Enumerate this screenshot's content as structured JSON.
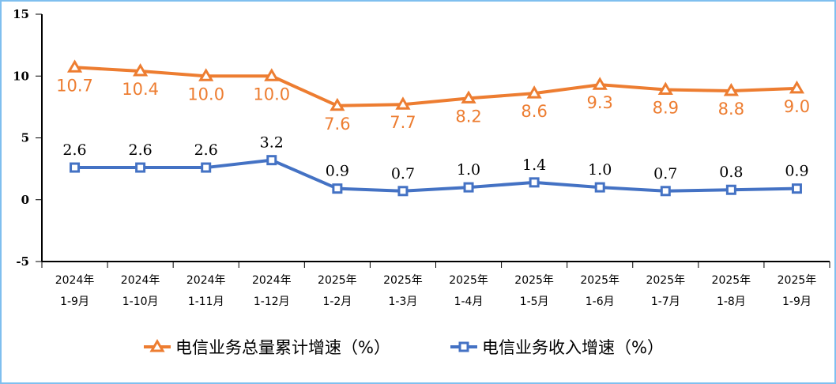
{
  "chart_data": {
    "type": "line",
    "categories": [
      "2024年\n1-9月",
      "2024年\n1-10月",
      "2024年\n1-11月",
      "2024年\n1-12月",
      "2025年\n1-2月",
      "2025年\n1-3月",
      "2025年\n1-4月",
      "2025年\n1-5月",
      "2025年\n1-6月",
      "2025年\n1-7月",
      "2025年\n1-8月",
      "2025年\n1-9月"
    ],
    "ylim": [
      -5,
      15
    ],
    "yticks": [
      "15",
      "10",
      "5",
      "0",
      "-5"
    ],
    "grid": false,
    "legend_placement": "bottom",
    "series": [
      {
        "name": "电信业务总量累计增速（%）",
        "color": "#ed7d31",
        "marker": "triangle",
        "values": [
          10.7,
          10.4,
          10.0,
          10.0,
          7.6,
          7.7,
          8.2,
          8.6,
          9.3,
          8.9,
          8.8,
          9.0
        ],
        "labels": [
          "10.7",
          "10.4",
          "10.0",
          "10.0",
          "7.6",
          "7.7",
          "8.2",
          "8.6",
          "9.3",
          "8.9",
          "8.8",
          "9.0"
        ]
      },
      {
        "name": "电信业务收入增速（%）",
        "color": "#4472c4",
        "marker": "square",
        "values": [
          2.6,
          2.6,
          2.6,
          3.2,
          0.9,
          0.7,
          1.0,
          1.4,
          1.0,
          0.7,
          0.8,
          0.9
        ],
        "labels": [
          "2.6",
          "2.6",
          "2.6",
          "3.2",
          "0.9",
          "0.7",
          "1.0",
          "1.4",
          "1.0",
          "0.7",
          "0.8",
          "0.9"
        ]
      }
    ]
  }
}
